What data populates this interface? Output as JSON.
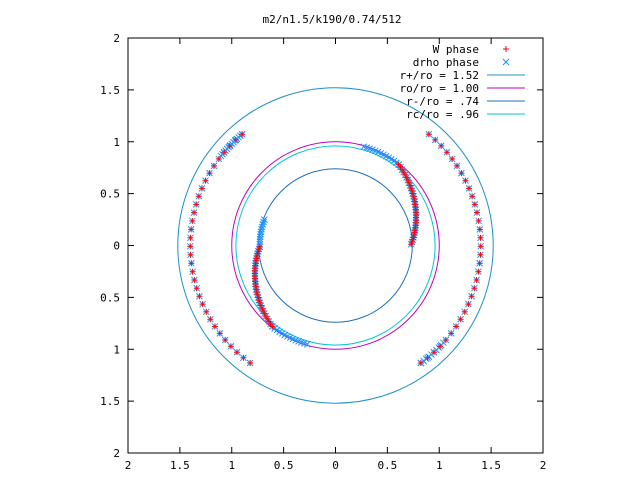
{
  "chart_data": {
    "type": "scatter",
    "title": "m2/n1.5/k190/0.74/512",
    "xlabel": "",
    "ylabel": "",
    "xlim": [
      -2,
      2
    ],
    "ylim": [
      -2,
      2
    ],
    "x_ticks": [
      -2,
      -1.5,
      -1,
      -0.5,
      0,
      0.5,
      1,
      1.5,
      2
    ],
    "y_ticks": [
      -2,
      -1.5,
      -1,
      -0.5,
      0,
      0.5,
      1,
      1.5,
      2
    ],
    "x_tick_labels": [
      "2",
      "1.5",
      "1",
      "0.5",
      "0",
      "0.5",
      "1",
      "1.5",
      "2"
    ],
    "y_tick_labels": [
      "2",
      "1.5",
      "1",
      "0.5",
      "0",
      "0.5",
      "1",
      "1.5",
      "2"
    ],
    "grid": false,
    "legend_position": "top-right",
    "series": [
      {
        "name": "W phase",
        "kind": "points",
        "marker": "plus",
        "color": "#ff0000",
        "arcs": [
          {
            "r_start": 1.4,
            "r_end": 1.4,
            "theta_start_deg": 50,
            "theta_end_deg": -54,
            "points": 32
          },
          {
            "r_start": 1.4,
            "r_end": 1.4,
            "theta_start_deg": 130,
            "theta_end_deg": 234,
            "points": 32
          },
          {
            "r_start": 0.99,
            "r_end": 0.73,
            "theta_start_deg": 52,
            "theta_end_deg": 1,
            "points": 32
          },
          {
            "r_start": 0.99,
            "r_end": 0.73,
            "theta_start_deg": 232,
            "theta_end_deg": 181,
            "points": 32
          }
        ]
      },
      {
        "name": "drho phase",
        "kind": "points",
        "marker": "cross",
        "color": "#1e90ff",
        "arcs": [
          {
            "r_start": 1.4,
            "r_end": 1.4,
            "theta_start_deg": 50,
            "theta_end_deg": -54,
            "points": 32
          },
          {
            "r_start": 1.4,
            "r_end": 1.4,
            "theta_start_deg": 130,
            "theta_end_deg": 234,
            "points": 32
          },
          {
            "r_start": 0.99,
            "r_end": 0.73,
            "theta_start_deg": 52,
            "theta_end_deg": 1,
            "points": 32
          },
          {
            "r_start": 0.99,
            "r_end": 0.73,
            "theta_start_deg": 232,
            "theta_end_deg": 181,
            "points": 32
          },
          {
            "r_start": 1.4,
            "r_end": 1.4,
            "theta_start_deg": 130,
            "theta_end_deg": 142,
            "points": 14
          },
          {
            "r_start": 0.99,
            "r_end": 0.99,
            "theta_start_deg": 232,
            "theta_end_deg": 254,
            "points": 14
          },
          {
            "r_start": 0.99,
            "r_end": 0.99,
            "theta_start_deg": 52,
            "theta_end_deg": 74,
            "points": 14
          },
          {
            "r_start": 1.4,
            "r_end": 1.4,
            "theta_start_deg": -42,
            "theta_end_deg": -54,
            "points": 10
          },
          {
            "r_start": 0.73,
            "r_end": 0.73,
            "theta_start_deg": 160,
            "theta_end_deg": 181,
            "points": 12
          }
        ]
      },
      {
        "name": "r+/ro = 1.52",
        "kind": "circle",
        "radius": 1.52,
        "color": "#1e90c8"
      },
      {
        "name": "ro/ro = 1.00",
        "kind": "circle",
        "radius": 1.0,
        "color": "#c000c0"
      },
      {
        "name": "r-/ro = .74",
        "kind": "circle",
        "radius": 0.74,
        "color": "#1e70b8"
      },
      {
        "name": "rc/ro = .96",
        "kind": "circle",
        "radius": 0.96,
        "color": "#00c8c8"
      }
    ]
  }
}
